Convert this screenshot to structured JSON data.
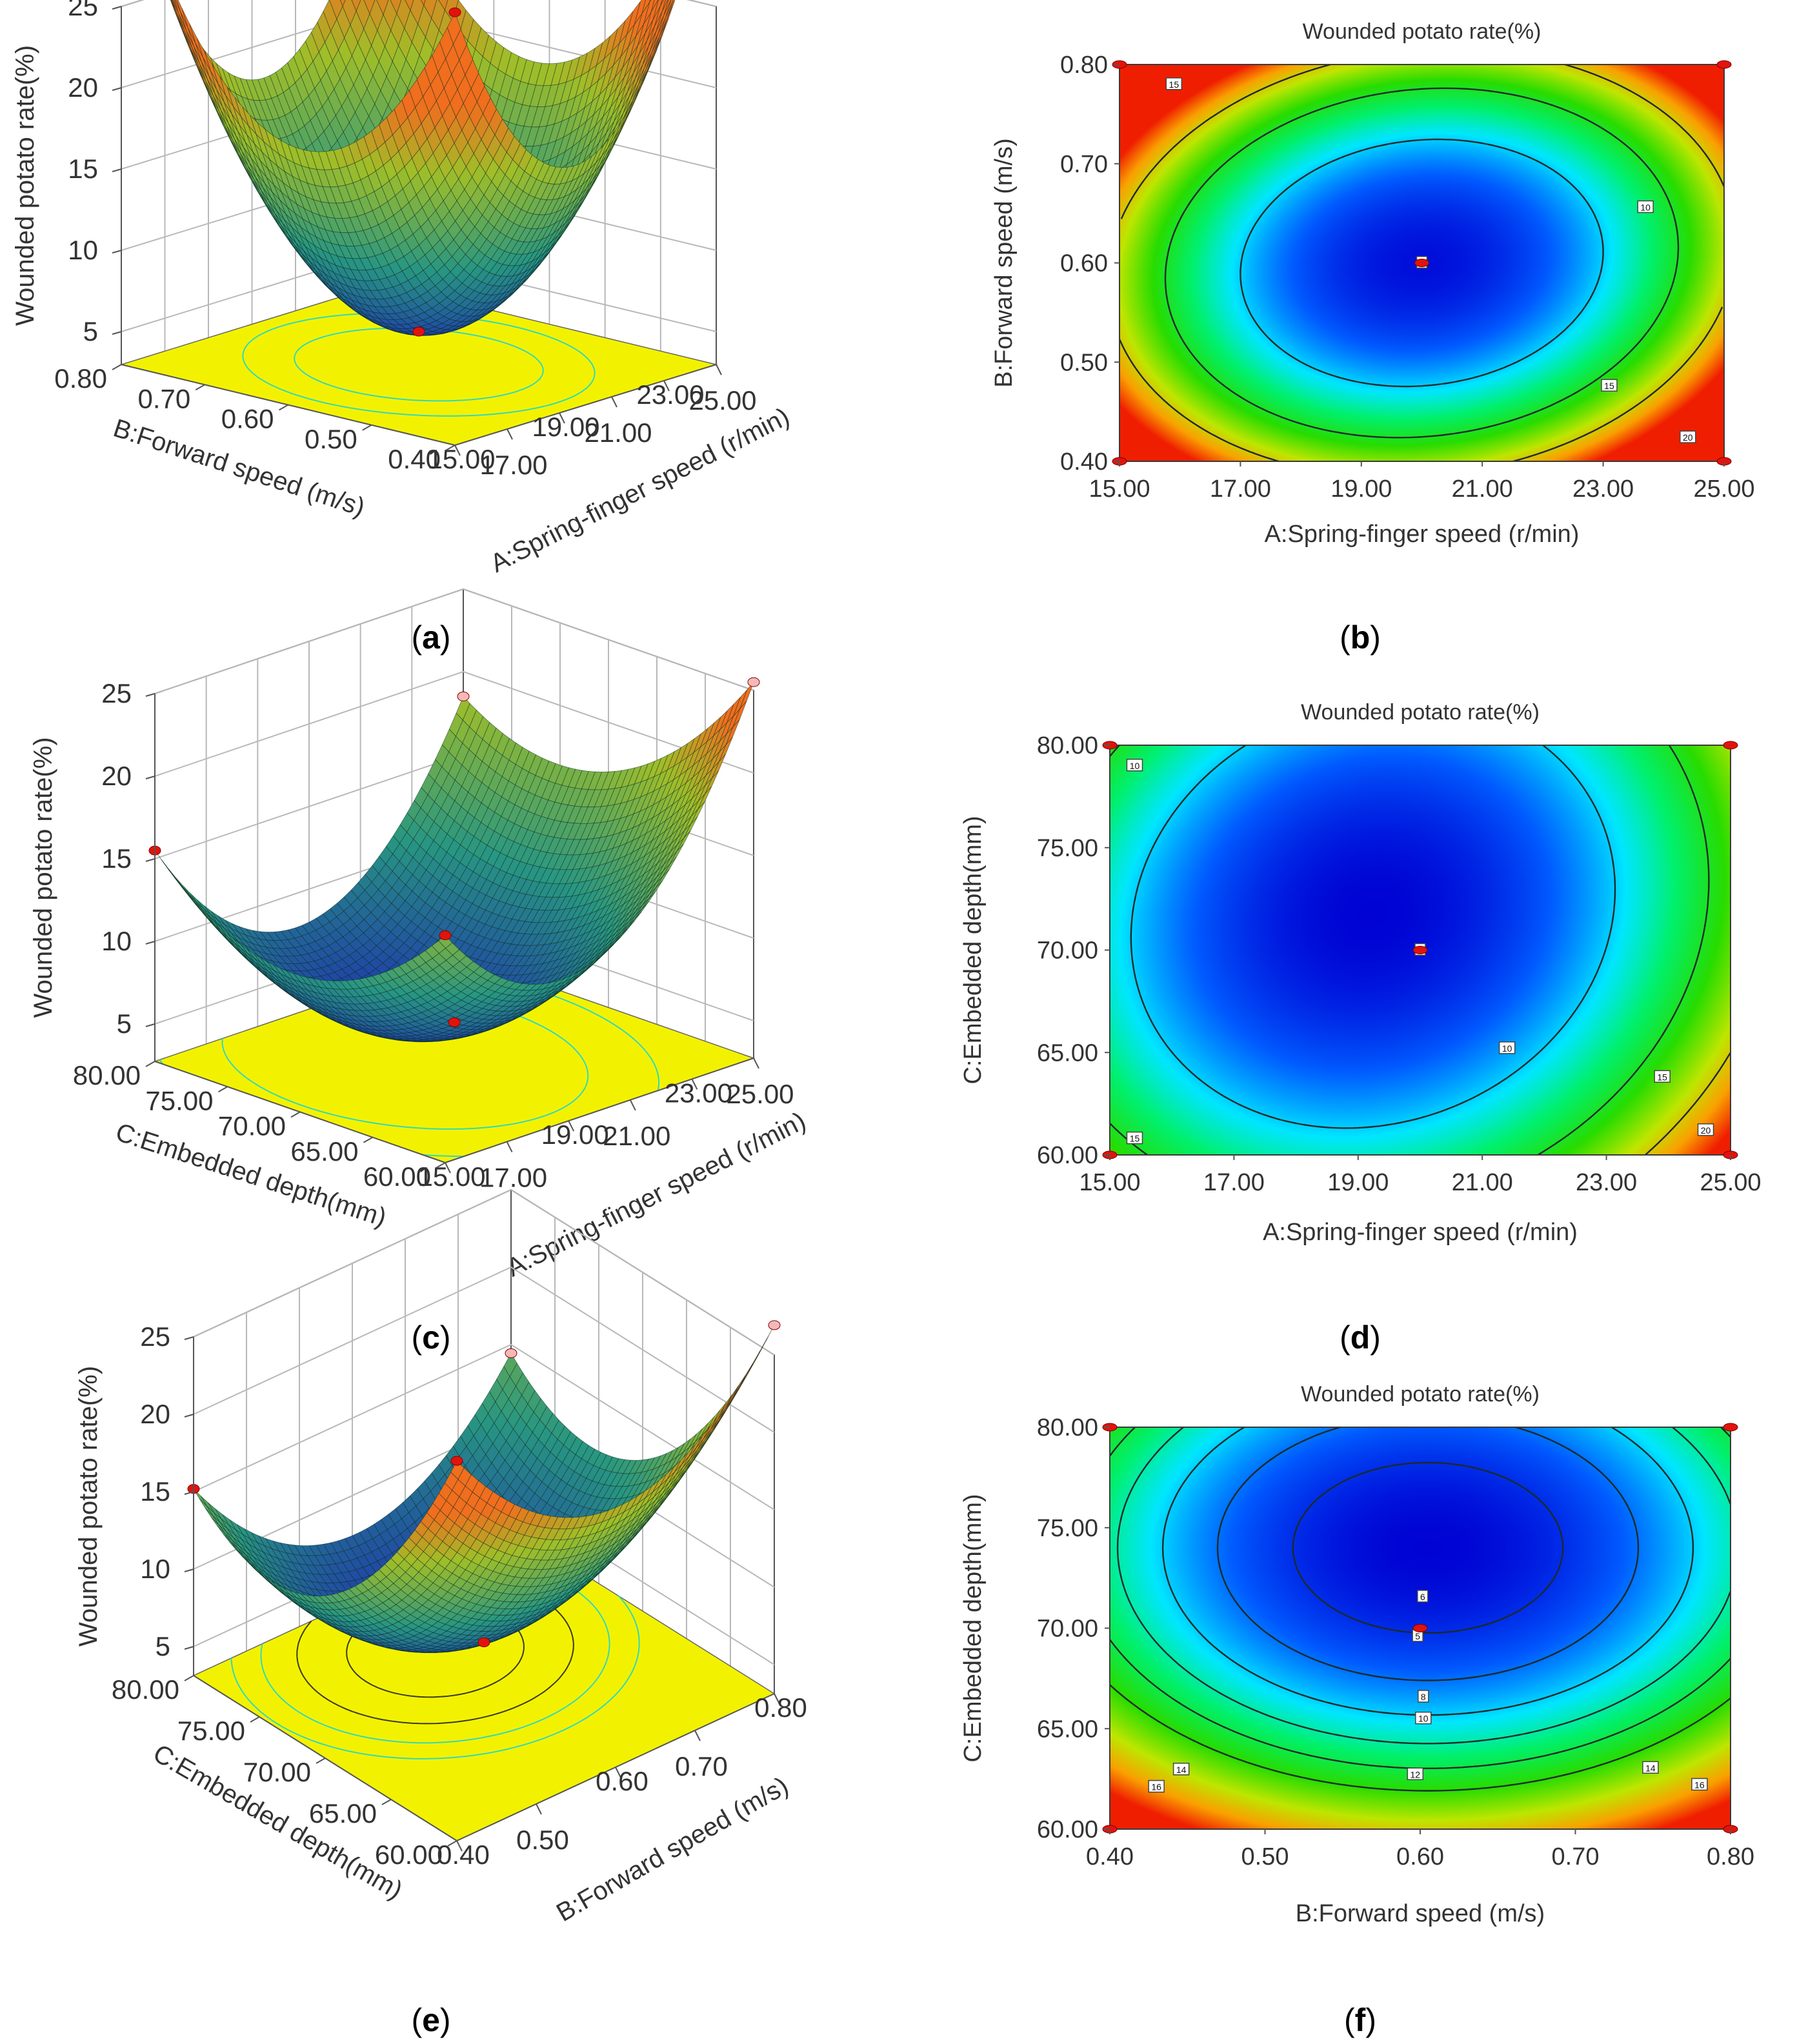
{
  "figure": {
    "captions": [
      "a",
      "b",
      "c",
      "d",
      "e",
      "f"
    ]
  },
  "colors": {
    "floor": "#f2f200",
    "floor_contour": "#33d9b8",
    "design_point_high": "#e0140c",
    "design_point_low": "#f4b8b8",
    "contour_line": "#1c2a2a"
  },
  "chart_data": [
    {
      "id": "a",
      "type": "surface3d",
      "title": "",
      "xlabel": "A:Spring-finger speed (r/min)",
      "ylabel": "B:Forward speed (m/s)",
      "zlabel": "Wounded potato rate(%)",
      "x_ticks": [
        "15.00",
        "17.00",
        "19.00",
        "21.00",
        "23.00",
        "25.00"
      ],
      "y_ticks": [
        "0.40",
        "0.50",
        "0.60",
        "0.70",
        "0.80"
      ],
      "z_ticks": [
        "5",
        "10",
        "15",
        "20",
        "25"
      ],
      "xlim": [
        15,
        25
      ],
      "ylim": [
        0.4,
        0.8
      ],
      "zlim": [
        0,
        25
      ],
      "model": {
        "x0": 20,
        "y0": 0.6,
        "zmin": 5.0,
        "a": 14.0,
        "b": 13.0,
        "c": 1.0,
        "d": 0.0,
        "e": 0.0,
        "cross": -0.24
      }
    },
    {
      "id": "b",
      "type": "contour",
      "title": "Wounded potato rate(%)",
      "xlabel": "A:Spring-finger speed (r/min)",
      "ylabel": "B:Forward speed (m/s)",
      "x_ticks": [
        "15.00",
        "17.00",
        "19.00",
        "21.00",
        "23.00",
        "25.00"
      ],
      "y_ticks": [
        "0.40",
        "0.50",
        "0.60",
        "0.70",
        "0.80"
      ],
      "xlim": [
        15,
        25
      ],
      "ylim": [
        0.4,
        0.8
      ],
      "levels": [
        10,
        15,
        20
      ],
      "contour_labels": [
        "15",
        "10",
        "15",
        "20",
        "5"
      ],
      "design_points": [
        [
          15,
          0.4
        ],
        [
          15,
          0.8
        ],
        [
          25,
          0.4
        ],
        [
          25,
          0.8
        ],
        [
          20,
          0.6
        ]
      ],
      "model": {
        "x0": 20,
        "y0": 0.6,
        "zmin": 5.0,
        "a": 14.0,
        "b": 13.0,
        "c": 1.0,
        "d": 0.0,
        "e": 0.0,
        "cross": -0.24
      }
    },
    {
      "id": "c",
      "type": "surface3d",
      "title": "",
      "xlabel": "A:Spring-finger speed (r/min)",
      "ylabel": "C:Embedded depth(mm)",
      "zlabel": "Wounded potato rate(%)",
      "x_ticks": [
        "15.00",
        "17.00",
        "19.00",
        "21.00",
        "23.00",
        "25.00"
      ],
      "y_ticks": [
        "60.00",
        "65.00",
        "70.00",
        "75.00",
        "80.00"
      ],
      "z_ticks": [
        "5",
        "10",
        "15",
        "20",
        "25"
      ],
      "xlim": [
        15,
        25
      ],
      "ylim": [
        60,
        80
      ],
      "zlim": [
        0,
        25
      ],
      "model": {
        "x0": 20,
        "y0": 70,
        "zmin": 5.0,
        "a": 9.0,
        "b": 5.0,
        "c": 1.0,
        "d": 3.0,
        "e": -2.0,
        "cross": -0.15
      }
    },
    {
      "id": "d",
      "type": "contour",
      "title": "Wounded potato rate(%)",
      "xlabel": "A:Spring-finger speed (r/min)",
      "ylabel": "C:Embedded depth(mm)",
      "x_ticks": [
        "15.00",
        "17.00",
        "19.00",
        "21.00",
        "23.00",
        "25.00"
      ],
      "y_ticks": [
        "60.00",
        "65.00",
        "70.00",
        "75.00",
        "80.00"
      ],
      "xlim": [
        15,
        25
      ],
      "ylim": [
        60,
        80
      ],
      "levels": [
        10,
        15,
        20
      ],
      "contour_labels": [
        "10",
        "10",
        "15",
        "15",
        "20",
        "5"
      ],
      "design_points": [
        [
          15,
          60
        ],
        [
          15,
          80
        ],
        [
          25,
          60
        ],
        [
          25,
          80
        ],
        [
          20,
          70
        ]
      ],
      "model": {
        "x0": 20,
        "y0": 70,
        "zmin": 5.0,
        "a": 9.0,
        "b": 5.0,
        "c": 1.0,
        "d": 3.0,
        "e": -2.0,
        "cross": -0.15
      }
    },
    {
      "id": "e",
      "type": "surface3d",
      "title": "",
      "xlabel": "B:Forward speed (m/s)",
      "ylabel": "C:Embedded depth(mm)",
      "zlabel": "Wounded potato rate(%)",
      "x_ticks": [
        "0.40",
        "0.50",
        "0.60",
        "0.70",
        "0.80"
      ],
      "y_ticks": [
        "60.00",
        "65.00",
        "70.00",
        "75.00",
        "80.00"
      ],
      "z_ticks": [
        "5",
        "10",
        "15",
        "20",
        "25"
      ],
      "xlim": [
        0.4,
        0.8
      ],
      "ylim": [
        60,
        80
      ],
      "zlim": [
        0,
        25
      ],
      "model": {
        "x0": 0.605,
        "y0": 74,
        "zmin": 4.6,
        "a": 7.4,
        "b": 7.8,
        "c": 1.0,
        "d": 0.0,
        "e": 0.0,
        "cross": 0.0
      }
    },
    {
      "id": "f",
      "type": "contour",
      "title": "Wounded potato rate(%)",
      "xlabel": "B:Forward speed (m/s)",
      "ylabel": "C:Embedded depth(mm)",
      "x_ticks": [
        "0.40",
        "0.50",
        "0.60",
        "0.70",
        "0.80"
      ],
      "y_ticks": [
        "60.00",
        "65.00",
        "70.00",
        "75.00",
        "80.00"
      ],
      "xlim": [
        0.4,
        0.8
      ],
      "ylim": [
        60,
        80
      ],
      "levels": [
        6,
        8,
        10,
        12,
        14,
        16
      ],
      "contour_labels": [
        "6",
        "8",
        "10",
        "12",
        "14",
        "14",
        "16",
        "16",
        "5"
      ],
      "design_points": [
        [
          0.4,
          60
        ],
        [
          0.4,
          80
        ],
        [
          0.8,
          60
        ],
        [
          0.8,
          80
        ],
        [
          0.6,
          70
        ]
      ],
      "model": {
        "x0": 0.605,
        "y0": 74,
        "zmin": 4.6,
        "a": 7.4,
        "b": 7.8,
        "c": 1.0,
        "d": 0.0,
        "e": 0.0,
        "cross": 0.0
      }
    }
  ]
}
